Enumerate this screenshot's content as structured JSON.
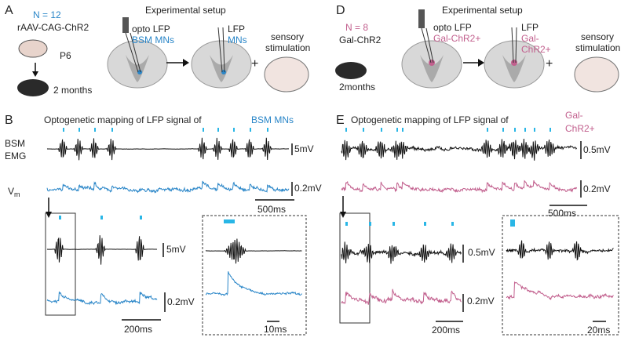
{
  "panel_a": {
    "letter": "A",
    "cohort": "N = 12",
    "construct": "rAAV-CAG-ChR2",
    "age": "P6",
    "adult_age": "2 months",
    "setup_title": "Experimental setup",
    "opto_label": "opto LFP",
    "opto_target": "BSM MNs",
    "lfp_label": "LFP",
    "lfp_target": "MNs",
    "plus": "+",
    "stimulation": [
      "sensory",
      "stimulation"
    ]
  },
  "panel_b": {
    "letter": "B",
    "title": "Optogenetic mapping of LFP signal of",
    "title_target": "BSM MNs",
    "emg_label": [
      "BSM",
      "EMG"
    ],
    "vm": "V",
    "vm_sub": "m",
    "emg_scale": "5mV",
    "lfp_scale": "0.2mV",
    "time_scale": "500ms",
    "zoom_emg_scale": "5mV",
    "zoom_lfp_scale": "0.2mV",
    "zoom_time_scale": "200ms",
    "inset_time_scale": "10ms"
  },
  "panel_d": {
    "letter": "D",
    "cohort": "N = 8",
    "construct": "Gal-ChR2",
    "adult_age": "2months",
    "setup_title": "Experimental setup",
    "opto_label": "opto LFP",
    "opto_target": "Gal-ChR2+",
    "lfp_label": "LFP",
    "lfp_target": [
      "Gal-",
      "ChR2+"
    ],
    "plus": "+",
    "stimulation": [
      "sensory",
      "stimulation"
    ]
  },
  "panel_e": {
    "letter": "E",
    "title": "Optogenetic mapping of LFP signal of",
    "title_target": [
      "Gal-",
      "ChR2+"
    ],
    "emg_scale": "0.5mV",
    "lfp_scale": "0.2mV",
    "time_scale": "500ms",
    "zoom_emg_scale": "0.5mV",
    "zoom_lfp_scale": "0.2mV",
    "zoom_time_scale": "200ms",
    "inset_time_scale": "20ms"
  }
}
